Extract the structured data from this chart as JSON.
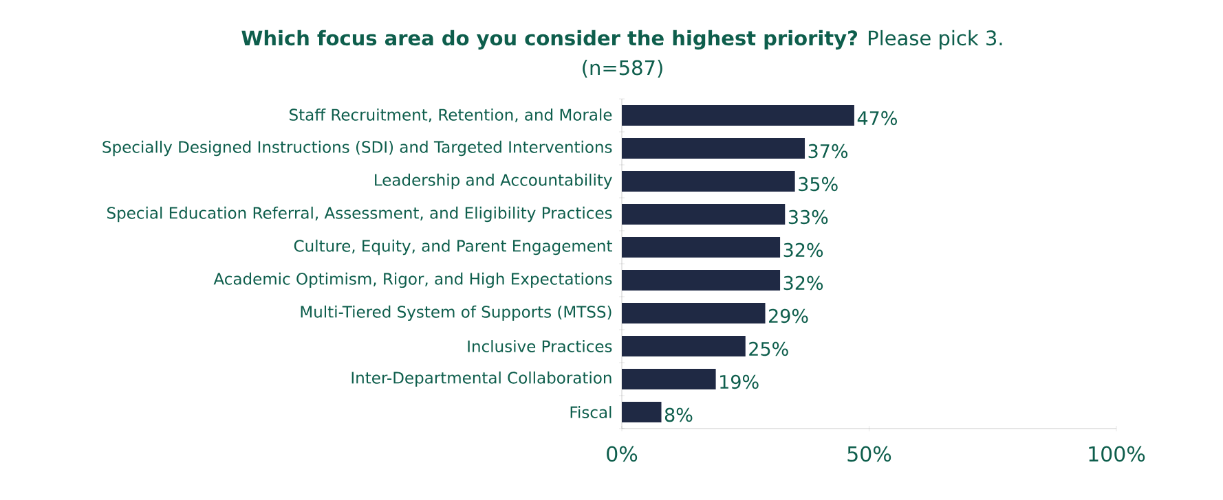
{
  "chart_data": {
    "type": "bar",
    "orientation": "horizontal",
    "title": "**Which focus area do you consider the highest priority?** Please pick 3.",
    "subtitle": "(n=587)",
    "categories": [
      "Staff Recruitment, Retention, and Morale",
      "Specially Designed Instructions (SDI) and Targeted Interventions",
      "Leadership and Accountability",
      "Special Education Referral, Assessment, and Eligibility Practices",
      "Culture, Equity, and Parent Engagement",
      "Academic Optimism, Rigor, and High Expectations",
      "Multi-Tiered System of Supports (MTSS)",
      "Inclusive Practices",
      "Inter-Departmental Collaboration",
      "Fiscal"
    ],
    "values": [
      47,
      37,
      35,
      33,
      32,
      32,
      29,
      25,
      19,
      8
    ],
    "value_labels": [
      "47%",
      "37%",
      "35%",
      "33%",
      "32%",
      "32%",
      "29%",
      "25%",
      "19%",
      "8%"
    ],
    "color": "#1f2944",
    "xlim": [
      0,
      100
    ],
    "xticks": [
      {
        "value": 0,
        "label": "0%"
      },
      {
        "value": 50,
        "label": "50%"
      },
      {
        "value": 100,
        "label": "100%"
      }
    ],
    "grid": false
  }
}
